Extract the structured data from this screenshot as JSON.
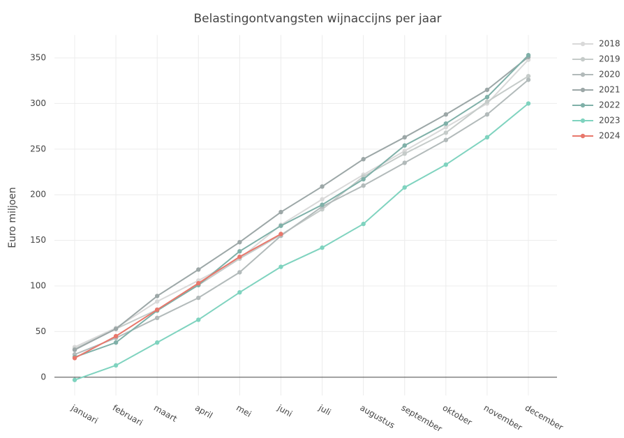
{
  "chart_data": {
    "type": "line",
    "title": "Belastingontvangsten wijnaccijns per jaar",
    "y_label": "Euro miljoen",
    "categories": [
      "januari",
      "februari",
      "maart",
      "april",
      "mei",
      "juni",
      "juli",
      "augustus",
      "september",
      "oktober",
      "november",
      "december"
    ],
    "series": [
      {
        "name": "2018",
        "color": "#d9d9d9",
        "values": [
          33,
          54,
          83,
          106,
          130,
          167,
          195,
          222,
          248,
          274,
          300,
          348
        ]
      },
      {
        "name": "2019",
        "color": "#c5cbc9",
        "values": [
          31,
          53,
          74,
          101,
          130,
          156,
          184,
          220,
          245,
          268,
          302,
          330
        ]
      },
      {
        "name": "2020",
        "color": "#b2baba",
        "values": [
          25,
          43,
          65,
          87,
          115,
          155,
          187,
          210,
          235,
          260,
          288,
          326
        ]
      },
      {
        "name": "2021",
        "color": "#9ca7a7",
        "values": [
          30,
          53,
          89,
          118,
          148,
          181,
          209,
          239,
          263,
          288,
          315,
          351
        ]
      },
      {
        "name": "2022",
        "color": "#7fb0a8",
        "values": [
          22,
          38,
          73,
          101,
          138,
          166,
          189,
          217,
          254,
          278,
          307,
          353
        ]
      },
      {
        "name": "2023",
        "color": "#7fd3bf",
        "values": [
          -3,
          13,
          38,
          63,
          93,
          121,
          142,
          168,
          208,
          233,
          263,
          300
        ]
      },
      {
        "name": "2024",
        "color": "#e8776b",
        "values": [
          21,
          45,
          74,
          103,
          132,
          157,
          null,
          null,
          null,
          null,
          null,
          null
        ]
      }
    ],
    "ylim": [
      -20,
      375
    ],
    "yticks": [
      0,
      50,
      100,
      150,
      200,
      250,
      300,
      350
    ],
    "grid": true,
    "legend": "top-right"
  }
}
